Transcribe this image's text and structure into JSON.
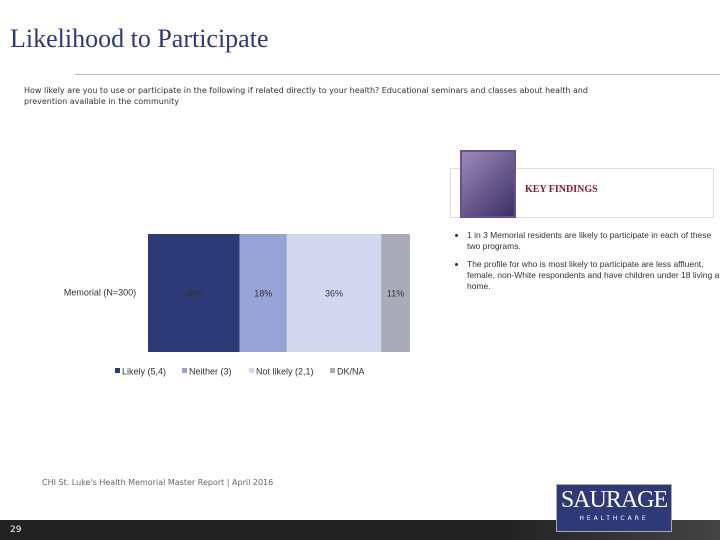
{
  "title": "Likelihood to Participate",
  "question": "How likely are you to use or participate in the following if related directly to your health? Educational seminars and classes about health and prevention available in the community",
  "chart_data": {
    "type": "bar",
    "orientation": "horizontal",
    "stacked": true,
    "categories": [
      "Memorial (N=300)"
    ],
    "series": [
      {
        "name": "Likely (5,4)",
        "color": "#2e3a78",
        "values": [
          35
        ],
        "value_labels": [
          "35%"
        ]
      },
      {
        "name": "Neither (3)",
        "color": "#97a3d6",
        "values": [
          18
        ],
        "value_labels": [
          "18%"
        ]
      },
      {
        "name": "Not likely (2,1)",
        "color": "#d3d8ef",
        "values": [
          36
        ],
        "value_labels": [
          "36%"
        ]
      },
      {
        "name": "DK/NA",
        "color": "#a9abb8",
        "values": [
          11
        ],
        "value_labels": [
          "11%"
        ]
      }
    ]
  },
  "key_findings": {
    "heading": "KEY FINDINGS",
    "bullets": [
      "1 in 3 Memorial residents are likely to participate in each of these two programs.",
      "The profile for who is most likely to participate are less affluent, female, non-White respondents and have children under 18 living at home."
    ]
  },
  "footer": "CHI St. Luke's Health Memorial Master Report | April 2016",
  "page_number": "29",
  "logo": {
    "name": "SAURAGE",
    "tagline": "HEALTHCARE"
  }
}
